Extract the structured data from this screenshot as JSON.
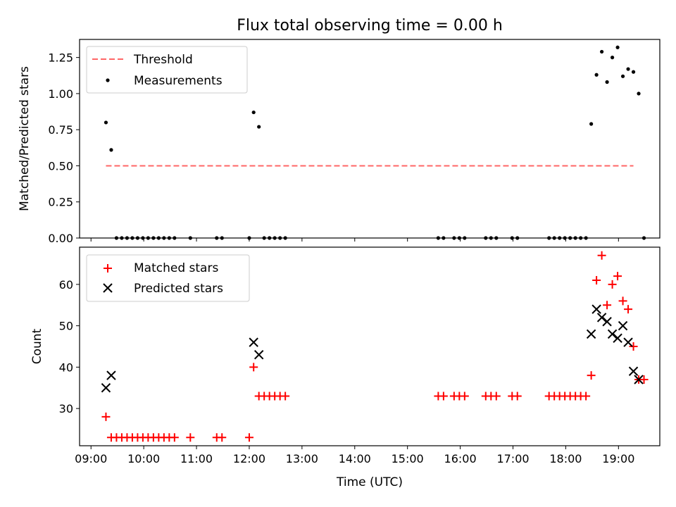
{
  "chart_data": [
    {
      "type": "scatter",
      "title": "Flux total observing time = 0.00 h",
      "ylabel": "Matched/Predicted stars",
      "xlabel": "",
      "xlim": [
        "08:47",
        "19:47"
      ],
      "ylim": [
        0,
        1.375
      ],
      "grid": false,
      "legend_position": "top-left",
      "x_ticks": [
        "09:00",
        "10:00",
        "11:00",
        "12:00",
        "13:00",
        "14:00",
        "15:00",
        "16:00",
        "17:00",
        "18:00",
        "19:00"
      ],
      "y_ticks": [
        "0.00",
        "0.25",
        "0.50",
        "0.75",
        "1.00",
        "1.25"
      ],
      "threshold": {
        "name": "Threshold",
        "value": 0.5,
        "x_range": [
          "09:17",
          "19:17"
        ],
        "color": "#ff6666",
        "style": "dashed"
      },
      "series": [
        {
          "name": "Measurements",
          "color": "#000000",
          "marker": "dot",
          "points": [
            [
              "09:17",
              0.8
            ],
            [
              "09:23",
              0.61
            ],
            [
              "09:29",
              0
            ],
            [
              "09:35",
              0
            ],
            [
              "09:41",
              0
            ],
            [
              "09:47",
              0
            ],
            [
              "09:53",
              0
            ],
            [
              "09:59",
              0
            ],
            [
              "10:05",
              0
            ],
            [
              "10:11",
              0
            ],
            [
              "10:17",
              0
            ],
            [
              "10:23",
              0
            ],
            [
              "10:29",
              0
            ],
            [
              "10:35",
              0
            ],
            [
              "10:53",
              0
            ],
            [
              "11:23",
              0
            ],
            [
              "11:29",
              0
            ],
            [
              "12:00",
              0
            ],
            [
              "12:05",
              0.87
            ],
            [
              "12:11",
              0.77
            ],
            [
              "12:17",
              0
            ],
            [
              "12:23",
              0
            ],
            [
              "12:29",
              0
            ],
            [
              "12:35",
              0
            ],
            [
              "12:41",
              0
            ],
            [
              "15:35",
              0
            ],
            [
              "15:41",
              0
            ],
            [
              "15:53",
              0
            ],
            [
              "15:59",
              0
            ],
            [
              "16:05",
              0
            ],
            [
              "16:29",
              0
            ],
            [
              "16:35",
              0
            ],
            [
              "16:41",
              0
            ],
            [
              "16:59",
              0
            ],
            [
              "17:05",
              0
            ],
            [
              "17:41",
              0
            ],
            [
              "17:47",
              0
            ],
            [
              "17:53",
              0
            ],
            [
              "17:59",
              0
            ],
            [
              "18:05",
              0
            ],
            [
              "18:11",
              0
            ],
            [
              "18:17",
              0
            ],
            [
              "18:23",
              0
            ],
            [
              "18:29",
              0.79
            ],
            [
              "18:35",
              1.13
            ],
            [
              "18:41",
              1.29
            ],
            [
              "18:47",
              1.08
            ],
            [
              "18:53",
              1.25
            ],
            [
              "18:59",
              1.32
            ],
            [
              "19:05",
              1.12
            ],
            [
              "19:11",
              1.17
            ],
            [
              "19:17",
              1.15
            ],
            [
              "19:23",
              1.0
            ],
            [
              "19:29",
              0
            ]
          ]
        }
      ]
    },
    {
      "type": "scatter",
      "title": "",
      "ylabel": "Count",
      "xlabel": "Time (UTC)",
      "xlim": [
        "08:47",
        "19:47"
      ],
      "ylim": [
        21,
        69
      ],
      "grid": false,
      "legend_position": "top-left",
      "x_ticks": [
        "09:00",
        "10:00",
        "11:00",
        "12:00",
        "13:00",
        "14:00",
        "15:00",
        "16:00",
        "17:00",
        "18:00",
        "19:00"
      ],
      "y_ticks": [
        "30",
        "40",
        "50",
        "60"
      ],
      "series": [
        {
          "name": "Matched stars",
          "color": "#ff0000",
          "marker": "plus",
          "points": [
            [
              "09:17",
              28
            ],
            [
              "09:23",
              23
            ],
            [
              "09:29",
              23
            ],
            [
              "09:35",
              23
            ],
            [
              "09:41",
              23
            ],
            [
              "09:47",
              23
            ],
            [
              "09:53",
              23
            ],
            [
              "09:59",
              23
            ],
            [
              "10:05",
              23
            ],
            [
              "10:11",
              23
            ],
            [
              "10:17",
              23
            ],
            [
              "10:23",
              23
            ],
            [
              "10:29",
              23
            ],
            [
              "10:35",
              23
            ],
            [
              "10:53",
              23
            ],
            [
              "11:23",
              23
            ],
            [
              "11:29",
              23
            ],
            [
              "12:00",
              23
            ],
            [
              "12:05",
              40
            ],
            [
              "12:11",
              33
            ],
            [
              "12:17",
              33
            ],
            [
              "12:23",
              33
            ],
            [
              "12:29",
              33
            ],
            [
              "12:35",
              33
            ],
            [
              "12:41",
              33
            ],
            [
              "15:35",
              33
            ],
            [
              "15:41",
              33
            ],
            [
              "15:53",
              33
            ],
            [
              "15:59",
              33
            ],
            [
              "16:05",
              33
            ],
            [
              "16:29",
              33
            ],
            [
              "16:35",
              33
            ],
            [
              "16:41",
              33
            ],
            [
              "16:59",
              33
            ],
            [
              "17:05",
              33
            ],
            [
              "17:41",
              33
            ],
            [
              "17:47",
              33
            ],
            [
              "17:53",
              33
            ],
            [
              "17:59",
              33
            ],
            [
              "18:05",
              33
            ],
            [
              "18:11",
              33
            ],
            [
              "18:17",
              33
            ],
            [
              "18:23",
              33
            ],
            [
              "18:29",
              38
            ],
            [
              "18:35",
              61
            ],
            [
              "18:41",
              67
            ],
            [
              "18:47",
              55
            ],
            [
              "18:53",
              60
            ],
            [
              "18:59",
              62
            ],
            [
              "19:05",
              56
            ],
            [
              "19:11",
              54
            ],
            [
              "19:17",
              45
            ],
            [
              "19:23",
              37
            ],
            [
              "19:29",
              37
            ]
          ]
        },
        {
          "name": "Predicted stars",
          "color": "#000000",
          "marker": "x",
          "points": [
            [
              "09:17",
              35
            ],
            [
              "09:23",
              38
            ],
            [
              "12:05",
              46
            ],
            [
              "12:11",
              43
            ],
            [
              "18:29",
              48
            ],
            [
              "18:35",
              54
            ],
            [
              "18:41",
              52
            ],
            [
              "18:47",
              51
            ],
            [
              "18:53",
              48
            ],
            [
              "18:59",
              47
            ],
            [
              "19:05",
              50
            ],
            [
              "19:11",
              46
            ],
            [
              "19:17",
              39
            ],
            [
              "19:23",
              37
            ]
          ]
        }
      ]
    }
  ]
}
